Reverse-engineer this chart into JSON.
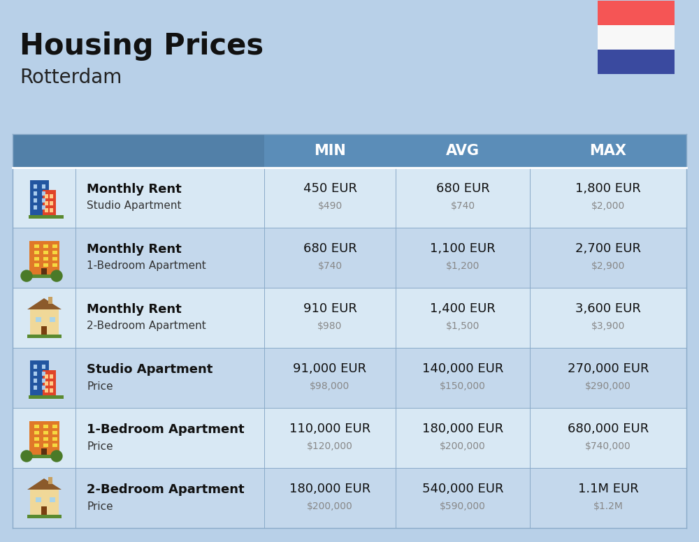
{
  "title": "Housing Prices",
  "subtitle": "Rotterdam",
  "bg_color": "#b8d0e8",
  "header_bg": "#5b8db8",
  "header_first_col_bg": "#6a9dc8",
  "row_bg_odd": "#d8e8f4",
  "row_bg_even": "#c4d8ec",
  "col_headers": [
    "MIN",
    "AVG",
    "MAX"
  ],
  "rows": [
    {
      "label_bold": "Monthly Rent",
      "label_sub": "Studio Apartment",
      "min_eur": "450 EUR",
      "min_usd": "$490",
      "avg_eur": "680 EUR",
      "avg_usd": "$740",
      "max_eur": "1,800 EUR",
      "max_usd": "$2,000",
      "icon_type": "blue_red"
    },
    {
      "label_bold": "Monthly Rent",
      "label_sub": "1-Bedroom Apartment",
      "min_eur": "680 EUR",
      "min_usd": "$740",
      "avg_eur": "1,100 EUR",
      "avg_usd": "$1,200",
      "max_eur": "2,700 EUR",
      "max_usd": "$2,900",
      "icon_type": "orange"
    },
    {
      "label_bold": "Monthly Rent",
      "label_sub": "2-Bedroom Apartment",
      "min_eur": "910 EUR",
      "min_usd": "$980",
      "avg_eur": "1,400 EUR",
      "avg_usd": "$1,500",
      "max_eur": "3,600 EUR",
      "max_usd": "$3,900",
      "icon_type": "beige"
    },
    {
      "label_bold": "Studio Apartment",
      "label_sub": "Price",
      "min_eur": "91,000 EUR",
      "min_usd": "$98,000",
      "avg_eur": "140,000 EUR",
      "avg_usd": "$150,000",
      "max_eur": "270,000 EUR",
      "max_usd": "$290,000",
      "icon_type": "blue_red"
    },
    {
      "label_bold": "1-Bedroom Apartment",
      "label_sub": "Price",
      "min_eur": "110,000 EUR",
      "min_usd": "$120,000",
      "avg_eur": "180,000 EUR",
      "avg_usd": "$200,000",
      "max_eur": "680,000 EUR",
      "max_usd": "$740,000",
      "icon_type": "orange"
    },
    {
      "label_bold": "2-Bedroom Apartment",
      "label_sub": "Price",
      "min_eur": "180,000 EUR",
      "min_usd": "$200,000",
      "avg_eur": "540,000 EUR",
      "avg_usd": "$590,000",
      "max_eur": "1.1M EUR",
      "max_usd": "$1.2M",
      "icon_type": "beige"
    }
  ],
  "flag_red": "#f55555",
  "flag_white": "#f8f8f8",
  "flag_blue": "#3a4a9f"
}
